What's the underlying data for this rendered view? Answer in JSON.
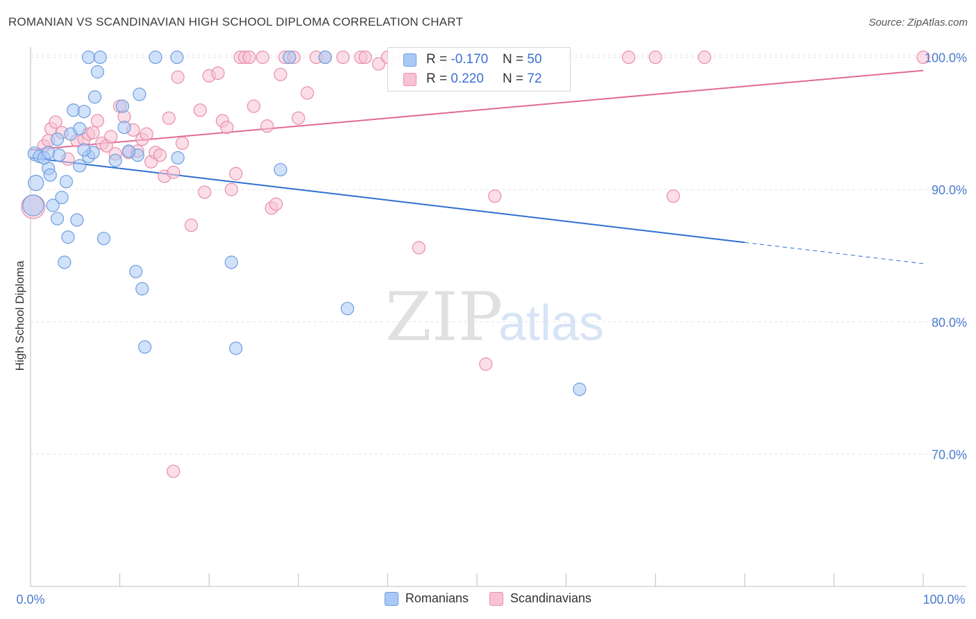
{
  "header": {
    "title": "ROMANIAN VS SCANDINAVIAN HIGH SCHOOL DIPLOMA CORRELATION CHART",
    "source": "Source: ZipAtlas.com"
  },
  "watermark": {
    "zip": "ZIP",
    "atlas": "atlas"
  },
  "colors": {
    "romanians_fill": "#a9c8f5",
    "romanians_stroke": "#6d9de0",
    "romanians_line": "#2d6fd1",
    "scandinavians_fill": "#f8c3d3",
    "scandinavians_stroke": "#e88ea9",
    "scandinavians_line": "#e06b93",
    "tick_label": "#4a7bd0"
  },
  "legend": {
    "rows": [
      {
        "r_label": "R = ",
        "r_value": "-0.170",
        "n_label": "N = ",
        "n_value": "50"
      },
      {
        "r_label": "R = ",
        "r_value": "0.220",
        "n_label": "N = ",
        "n_value": "72"
      }
    ],
    "bottom": [
      "Romanians",
      "Scandinavians"
    ]
  },
  "chart_data": {
    "type": "scatter",
    "title": "ROMANIAN VS SCANDINAVIAN HIGH SCHOOL DIPLOMA CORRELATION CHART",
    "xlabel": "",
    "ylabel": "High School Diploma",
    "xlim": [
      0,
      100
    ],
    "ylim": [
      60,
      100.5
    ],
    "x_tick_labels": [
      "0.0%",
      "100.0%"
    ],
    "y_ticks": [
      70,
      80,
      90,
      100
    ],
    "y_tick_labels": [
      "70.0%",
      "80.0%",
      "90.0%",
      "100.0%"
    ],
    "grid": true,
    "legend_position": "top-center",
    "series": [
      {
        "name": "Romanians",
        "R": -0.17,
        "N": 50,
        "trend": {
          "x0": 0,
          "y0": 92.4,
          "x1": 80,
          "y1": 86.0,
          "dashed_to": 100,
          "y_end": 84.4
        },
        "points": [
          [
            0.5,
            92.7
          ],
          [
            1.0,
            92.5
          ],
          [
            2.0,
            91.6
          ],
          [
            2.2,
            91.1
          ],
          [
            0.6,
            90.5
          ],
          [
            2.5,
            88.8
          ],
          [
            4.0,
            90.6
          ],
          [
            3.5,
            89.4
          ],
          [
            3.0,
            87.8
          ],
          [
            5.2,
            87.7
          ],
          [
            4.2,
            86.4
          ],
          [
            8.2,
            86.3
          ],
          [
            3.8,
            84.5
          ],
          [
            11.8,
            83.8
          ],
          [
            12.5,
            82.5
          ],
          [
            22.5,
            84.5
          ],
          [
            12.8,
            78.1
          ],
          [
            23.0,
            78.0
          ],
          [
            35.5,
            81.0
          ],
          [
            61.5,
            74.9
          ],
          [
            6.5,
            92.5
          ],
          [
            5.5,
            91.8
          ],
          [
            7.0,
            92.8
          ],
          [
            9.5,
            92.2
          ],
          [
            12.0,
            92.6
          ],
          [
            16.5,
            92.4
          ],
          [
            28.0,
            91.5
          ],
          [
            3.0,
            93.8
          ],
          [
            1.5,
            92.4
          ],
          [
            6.0,
            93.0
          ],
          [
            4.5,
            94.2
          ],
          [
            5.5,
            94.6
          ],
          [
            10.5,
            94.7
          ],
          [
            4.8,
            96.0
          ],
          [
            6.0,
            95.9
          ],
          [
            7.2,
            97.0
          ],
          [
            10.3,
            96.3
          ],
          [
            12.2,
            97.2
          ],
          [
            7.5,
            98.9
          ],
          [
            6.5,
            100
          ],
          [
            7.8,
            100
          ],
          [
            14.0,
            100
          ],
          [
            16.4,
            100
          ],
          [
            29.0,
            100
          ],
          [
            33.0,
            100
          ],
          [
            54.0,
            100
          ],
          [
            2.0,
            92.8
          ],
          [
            3.2,
            92.6
          ],
          [
            11.0,
            92.9
          ],
          [
            0.3,
            88.8
          ]
        ],
        "sizes": [
          20,
          18,
          18,
          18,
          22,
          18,
          18,
          18,
          18,
          18,
          18,
          18,
          18,
          18,
          18,
          18,
          18,
          18,
          18,
          18,
          18,
          18,
          18,
          18,
          18,
          18,
          18,
          18,
          18,
          18,
          18,
          18,
          18,
          18,
          18,
          18,
          18,
          18,
          18,
          18,
          18,
          18,
          18,
          18,
          18,
          18,
          18,
          18,
          18,
          30
        ]
      },
      {
        "name": "Scandinavians",
        "R": 0.22,
        "N": 72,
        "trend": {
          "x0": 0,
          "y0": 93.0,
          "x1": 100,
          "y1": 99.0
        },
        "points": [
          [
            0.3,
            88.7
          ],
          [
            1.5,
            93.3
          ],
          [
            2.0,
            93.7
          ],
          [
            2.3,
            94.6
          ],
          [
            2.8,
            95.1
          ],
          [
            3.5,
            94.3
          ],
          [
            4.2,
            92.3
          ],
          [
            5.2,
            93.7
          ],
          [
            6.0,
            93.8
          ],
          [
            6.5,
            94.2
          ],
          [
            7.0,
            94.3
          ],
          [
            7.5,
            95.2
          ],
          [
            8.0,
            93.5
          ],
          [
            8.5,
            93.3
          ],
          [
            9.0,
            94.0
          ],
          [
            9.5,
            92.7
          ],
          [
            10.0,
            96.3
          ],
          [
            10.5,
            95.5
          ],
          [
            11.0,
            92.8
          ],
          [
            11.5,
            94.5
          ],
          [
            12.0,
            92.9
          ],
          [
            12.5,
            93.8
          ],
          [
            13.0,
            94.2
          ],
          [
            13.5,
            92.1
          ],
          [
            14.0,
            92.8
          ],
          [
            14.5,
            92.6
          ],
          [
            15.0,
            91.0
          ],
          [
            15.5,
            95.4
          ],
          [
            16.0,
            91.3
          ],
          [
            16.5,
            98.5
          ],
          [
            17.0,
            93.5
          ],
          [
            18.0,
            87.3
          ],
          [
            19.0,
            96.0
          ],
          [
            19.5,
            89.8
          ],
          [
            20.0,
            98.6
          ],
          [
            21.0,
            98.8
          ],
          [
            21.5,
            95.2
          ],
          [
            22.0,
            94.7
          ],
          [
            22.5,
            90.0
          ],
          [
            23.0,
            91.2
          ],
          [
            23.5,
            100
          ],
          [
            24.0,
            100
          ],
          [
            25.0,
            96.3
          ],
          [
            26.0,
            100
          ],
          [
            26.5,
            94.8
          ],
          [
            27.0,
            88.6
          ],
          [
            27.5,
            88.9
          ],
          [
            28.0,
            98.7
          ],
          [
            28.5,
            100
          ],
          [
            29.5,
            100
          ],
          [
            30.0,
            95.4
          ],
          [
            31.0,
            97.3
          ],
          [
            32.0,
            100
          ],
          [
            33.0,
            100
          ],
          [
            35.0,
            100
          ],
          [
            37.0,
            100
          ],
          [
            37.5,
            100
          ],
          [
            39.0,
            99.5
          ],
          [
            40.0,
            100
          ],
          [
            42.0,
            100
          ],
          [
            43.5,
            85.6
          ],
          [
            46.0,
            100
          ],
          [
            47.0,
            99.3
          ],
          [
            51.0,
            76.8
          ],
          [
            52.0,
            89.5
          ],
          [
            67.0,
            100
          ],
          [
            70.0,
            100
          ],
          [
            72.0,
            89.5
          ],
          [
            75.5,
            100
          ],
          [
            100.0,
            100
          ],
          [
            16.0,
            68.7
          ],
          [
            24.5,
            100
          ]
        ],
        "sizes": [
          34,
          18,
          18,
          18,
          18,
          18,
          18,
          18,
          18,
          18,
          18,
          18,
          18,
          18,
          18,
          18,
          18,
          18,
          18,
          18,
          18,
          18,
          18,
          18,
          18,
          18,
          18,
          18,
          18,
          18,
          18,
          18,
          18,
          18,
          18,
          18,
          18,
          18,
          18,
          18,
          18,
          18,
          18,
          18,
          18,
          18,
          18,
          18,
          18,
          18,
          18,
          18,
          18,
          18,
          18,
          18,
          18,
          18,
          18,
          18,
          18,
          18,
          18,
          18,
          18,
          18,
          18,
          18,
          18,
          18,
          18,
          18
        ]
      }
    ]
  }
}
